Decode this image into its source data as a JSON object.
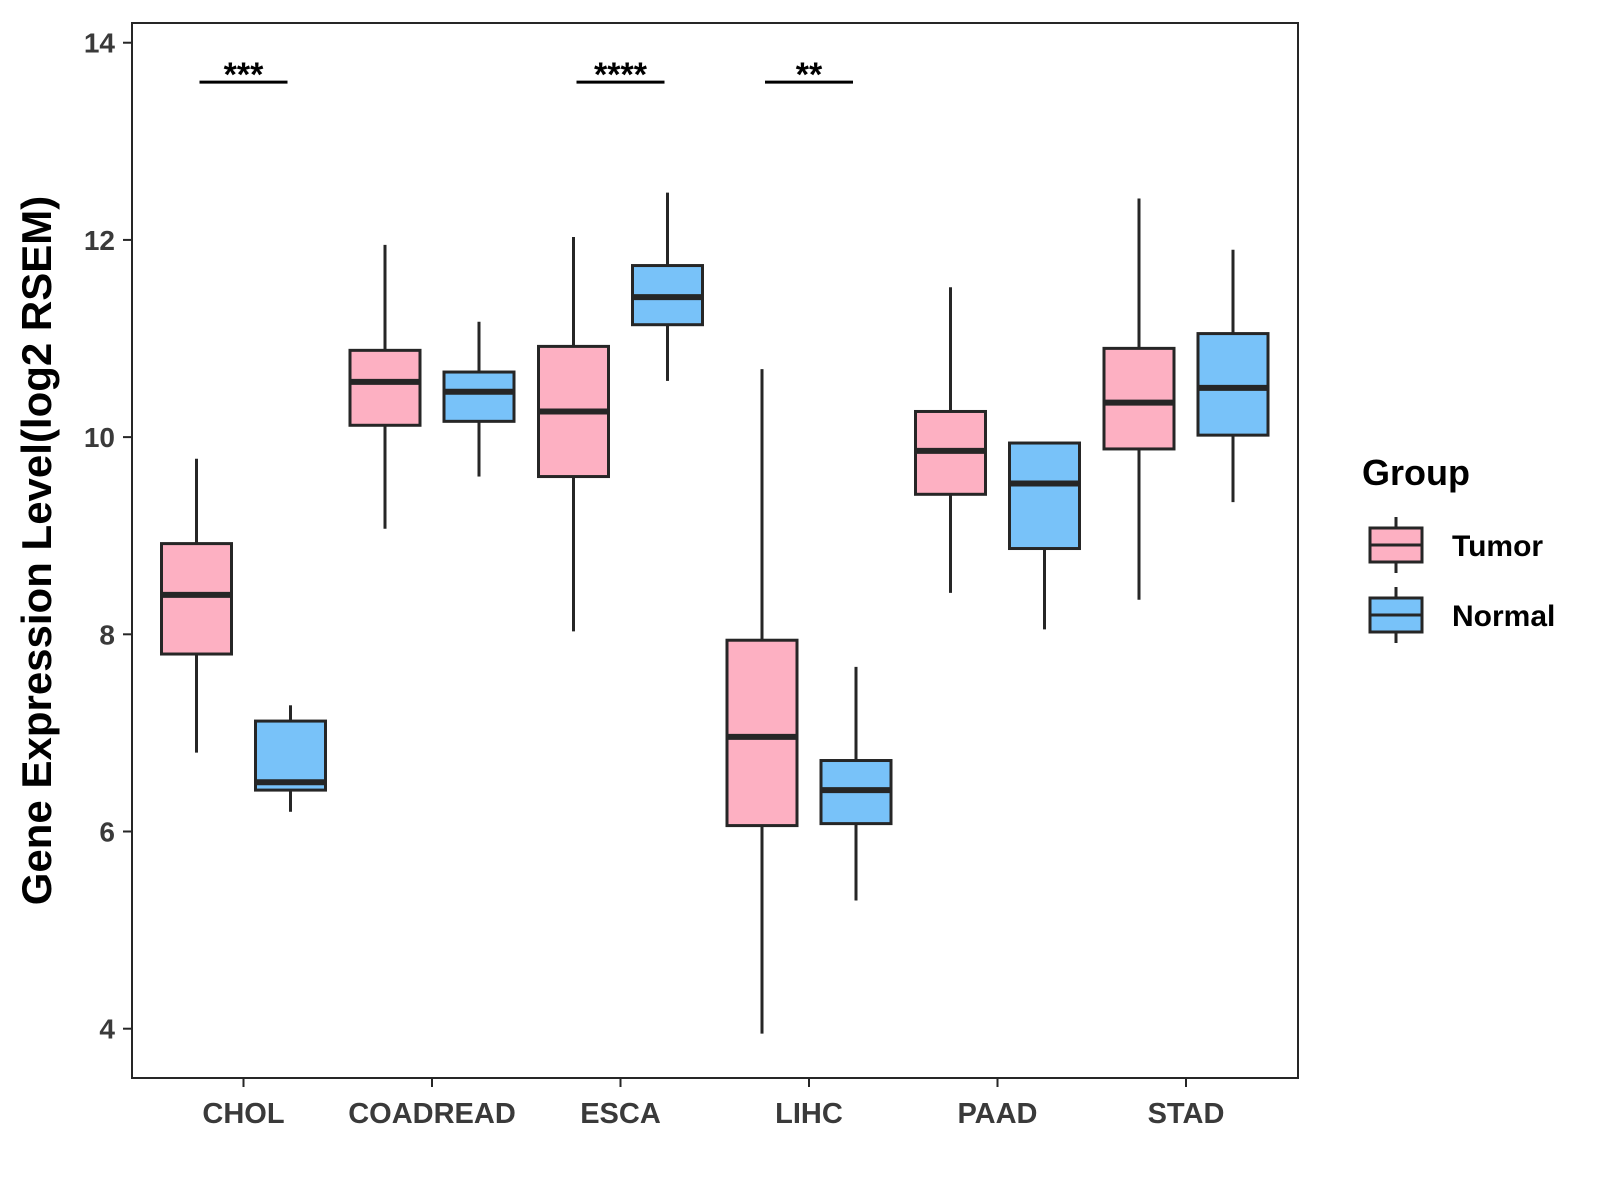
{
  "chart_data": {
    "type": "boxplot",
    "title": "",
    "xlabel": "",
    "ylabel": "Gene Expression Level(log2 RSEM)",
    "ylim": [
      3.5,
      14.2
    ],
    "yticks": [
      4,
      6,
      8,
      10,
      12,
      14
    ],
    "grid": false,
    "categories": [
      "CHOL",
      "COADREAD",
      "ESCA",
      "LIHC",
      "PAAD",
      "STAD"
    ],
    "legend": {
      "title": "Group",
      "position": "right",
      "entries": [
        "Tumor",
        "Normal"
      ]
    },
    "colors": {
      "Tumor": "#FDB0C2",
      "Normal": "#78C2F9",
      "stroke": "#262626"
    },
    "series": [
      {
        "name": "Tumor",
        "boxes": [
          {
            "category": "CHOL",
            "min": 6.8,
            "q1": 7.8,
            "median": 8.4,
            "q3": 8.92,
            "max": 9.78
          },
          {
            "category": "COADREAD",
            "min": 9.07,
            "q1": 10.12,
            "median": 10.56,
            "q3": 10.88,
            "max": 11.95
          },
          {
            "category": "ESCA",
            "min": 8.03,
            "q1": 9.6,
            "median": 10.26,
            "q3": 10.92,
            "max": 12.03
          },
          {
            "category": "LIHC",
            "min": 3.95,
            "q1": 6.06,
            "median": 6.96,
            "q3": 7.94,
            "max": 10.69
          },
          {
            "category": "PAAD",
            "min": 8.42,
            "q1": 9.42,
            "median": 9.86,
            "q3": 10.26,
            "max": 11.52
          },
          {
            "category": "STAD",
            "min": 8.35,
            "q1": 9.88,
            "median": 10.35,
            "q3": 10.9,
            "max": 12.42
          }
        ]
      },
      {
        "name": "Normal",
        "boxes": [
          {
            "category": "CHOL",
            "min": 6.2,
            "q1": 6.42,
            "median": 6.5,
            "q3": 7.12,
            "max": 7.28
          },
          {
            "category": "COADREAD",
            "min": 9.6,
            "q1": 10.16,
            "median": 10.46,
            "q3": 10.66,
            "max": 11.17
          },
          {
            "category": "ESCA",
            "min": 10.57,
            "q1": 11.14,
            "median": 11.42,
            "q3": 11.74,
            "max": 12.48
          },
          {
            "category": "LIHC",
            "min": 5.3,
            "q1": 6.08,
            "median": 6.42,
            "q3": 6.72,
            "max": 7.67
          },
          {
            "category": "PAAD",
            "min": 8.05,
            "q1": 8.87,
            "median": 9.53,
            "q3": 9.94,
            "max": 9.94
          },
          {
            "category": "STAD",
            "min": 9.34,
            "q1": 10.02,
            "median": 10.5,
            "q3": 11.05,
            "max": 11.9
          }
        ]
      }
    ],
    "annotations": [
      {
        "category": "CHOL",
        "label": "***",
        "y": 13.6
      },
      {
        "category": "ESCA",
        "label": "****",
        "y": 13.6
      },
      {
        "category": "LIHC",
        "label": "**",
        "y": 13.6
      }
    ]
  }
}
